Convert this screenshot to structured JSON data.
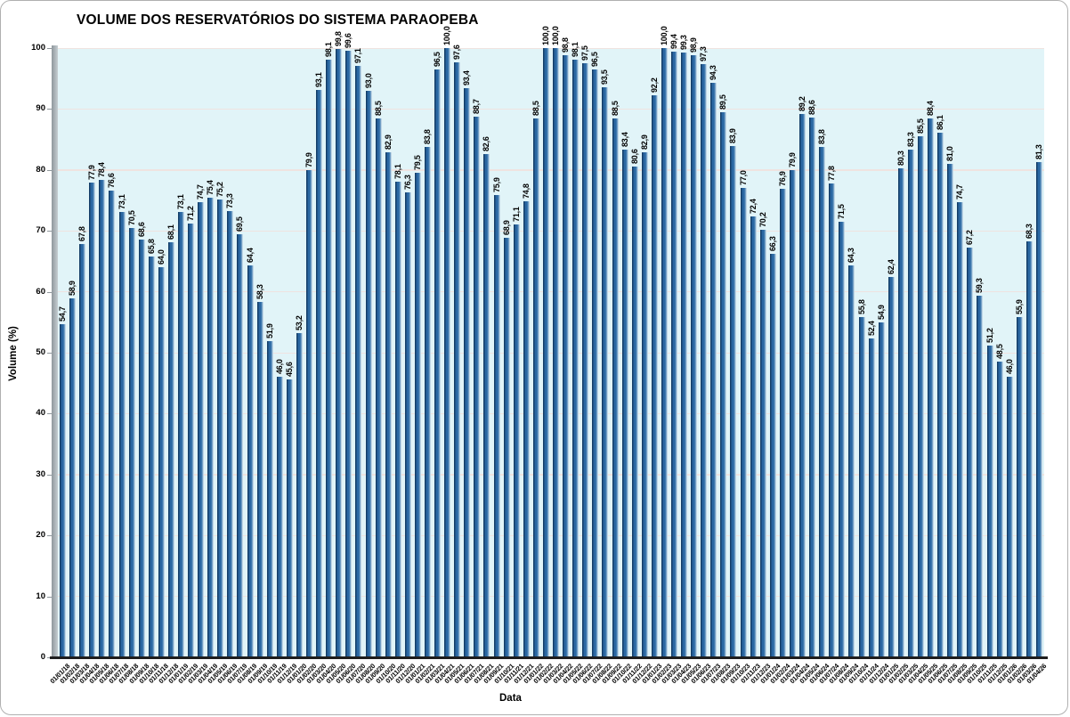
{
  "chart_data": {
    "type": "bar",
    "title": "VOLUME DOS RESERVATÓRIOS DO SISTEMA PARAOPEBA",
    "xlabel": "Data",
    "ylabel": "Volume (%)",
    "ylim": [
      0,
      100
    ],
    "yticks": [
      0,
      10,
      20,
      30,
      40,
      50,
      60,
      70,
      80,
      90,
      100
    ],
    "grid": true,
    "legend": false,
    "decimal_separator": ",",
    "date_format": "dd/mm/yy",
    "bar_color": "#2a67a2",
    "bar_edge_dark": "#143e68",
    "bar_edge_light": "#9fc0da",
    "plot_bg_color": "#e1f4f8",
    "gridline_color": "#efe3e0",
    "categories": [
      "01/01/18",
      "01/02/18",
      "01/03/18",
      "01/04/18",
      "01/05/18",
      "01/06/18",
      "01/07/18",
      "01/08/18",
      "01/09/18",
      "01/10/18",
      "01/11/18",
      "01/12/18",
      "01/01/19",
      "01/02/19",
      "01/03/19",
      "01/04/19",
      "01/05/19",
      "01/06/19",
      "01/07/19",
      "01/08/19",
      "01/09/19",
      "01/10/19",
      "01/11/19",
      "01/12/19",
      "01/01/20",
      "01/02/20",
      "01/03/20",
      "01/04/20",
      "01/05/20",
      "01/06/20",
      "01/07/20",
      "01/08/20",
      "01/09/20",
      "01/10/20",
      "01/11/20",
      "01/12/20",
      "01/01/21",
      "01/02/21",
      "01/03/21",
      "01/04/21",
      "01/05/21",
      "01/06/21",
      "01/07/21",
      "01/08/21",
      "01/09/21",
      "01/10/21",
      "01/11/21",
      "01/12/21",
      "01/01/22",
      "01/02/22",
      "01/03/22",
      "01/04/22",
      "01/05/22",
      "01/06/22",
      "01/07/22",
      "01/08/22",
      "01/09/22",
      "01/10/22",
      "01/11/22",
      "01/12/22",
      "01/01/23",
      "01/02/23",
      "01/03/23",
      "01/04/23",
      "01/05/23",
      "01/06/23",
      "01/07/23",
      "01/08/23",
      "01/09/23",
      "01/10/23",
      "01/11/23",
      "01/12/23",
      "01/01/24",
      "01/02/24",
      "01/03/24",
      "01/04/24",
      "01/05/24",
      "01/06/24",
      "01/07/24",
      "01/08/24",
      "01/09/24",
      "01/10/24",
      "01/11/24",
      "01/12/24",
      "01/01/25",
      "01/02/25",
      "01/03/25",
      "01/04/25",
      "01/05/25",
      "01/06/25",
      "01/07/25",
      "01/08/25",
      "01/09/25",
      "01/10/25",
      "01/11/25",
      "01/12/25",
      "01/01/26",
      "01/02/26",
      "01/03/26",
      "01/04/26"
    ],
    "values": [
      54.7,
      58.9,
      67.8,
      77.9,
      78.4,
      76.6,
      73.1,
      70.5,
      68.6,
      65.8,
      64.0,
      68.1,
      73.1,
      71.2,
      74.7,
      75.4,
      75.2,
      73.3,
      69.5,
      64.4,
      58.3,
      51.9,
      46.0,
      45.6,
      53.2,
      79.9,
      93.1,
      98.1,
      99.8,
      99.6,
      97.1,
      93.0,
      88.5,
      82.9,
      78.1,
      76.3,
      79.5,
      83.8,
      96.5,
      100.0,
      97.6,
      93.4,
      88.7,
      82.6,
      75.9,
      68.9,
      71.1,
      74.8,
      88.5,
      100.0,
      100.0,
      98.8,
      98.1,
      97.5,
      96.5,
      93.5,
      88.5,
      83.4,
      80.6,
      82.9,
      92.2,
      100.0,
      99.4,
      99.3,
      98.9,
      97.3,
      94.3,
      89.5,
      83.9,
      77.0,
      72.4,
      70.2,
      66.3,
      76.9,
      79.9,
      89.2,
      88.6,
      83.8,
      77.8,
      71.5,
      64.3,
      55.8,
      52.4,
      54.9,
      62.4,
      80.3,
      83.3,
      85.5,
      88.4,
      86.1,
      81.0,
      74.7,
      67.2,
      59.3,
      51.2,
      48.5,
      46.0,
      55.9,
      68.3,
      81.3
    ]
  }
}
